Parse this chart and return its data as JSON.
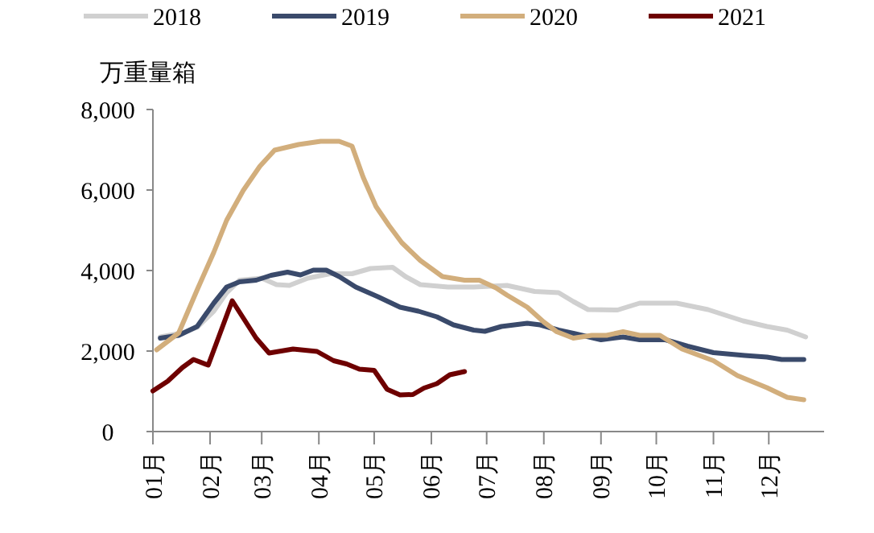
{
  "chart_data": {
    "type": "line",
    "ylabel": "万重量箱",
    "legend": "top",
    "grid": false,
    "marker": "none",
    "line_style": "solid",
    "xlim": [
      "--01-01",
      "--12-31"
    ],
    "xticks": [
      {
        "value": "--01-01",
        "label": "01月"
      },
      {
        "value": "--02-01",
        "label": "02月"
      },
      {
        "value": "--03-01",
        "label": "03月"
      },
      {
        "value": "--04-01",
        "label": "04月"
      },
      {
        "value": "--05-01",
        "label": "05月"
      },
      {
        "value": "--06-01",
        "label": "06月"
      },
      {
        "value": "--07-01",
        "label": "07月"
      },
      {
        "value": "--08-01",
        "label": "08月"
      },
      {
        "value": "--09-01",
        "label": "09月"
      },
      {
        "value": "--10-01",
        "label": "10月"
      },
      {
        "value": "--11-01",
        "label": "11月"
      },
      {
        "value": "--12-01",
        "label": "12月"
      }
    ],
    "ylim": [
      0,
      8000
    ],
    "yticks": [
      {
        "value": 0,
        "label": "0"
      },
      {
        "value": 2000,
        "label": "2,000"
      },
      {
        "value": 4000,
        "label": "4,000"
      },
      {
        "value": 6000,
        "label": "6,000"
      },
      {
        "value": 8000,
        "label": "8,000"
      }
    ],
    "series": [
      {
        "name": "2018",
        "color": "#d0d0d0",
        "x": [
          "--01-05",
          "--01-17",
          "--01-25",
          "--02-03",
          "--02-10",
          "--02-17",
          "--03-01",
          "--03-09",
          "--03-16",
          "--03-26",
          "--04-07",
          "--04-19",
          "--04-29",
          "--05-11",
          "--05-18",
          "--05-26",
          "--06-10",
          "--06-24",
          "--07-12",
          "--07-27",
          "--08-09",
          "--08-17",
          "--08-25",
          "--09-10",
          "--09-22",
          "--10-12",
          "--10-29",
          "--11-17",
          "--11-30",
          "--12-11",
          "--12-21"
        ],
        "values": [
          2350,
          2450,
          2590,
          2990,
          3450,
          3760,
          3810,
          3650,
          3630,
          3810,
          3920,
          3920,
          4050,
          4080,
          3850,
          3650,
          3590,
          3590,
          3630,
          3480,
          3450,
          3230,
          3030,
          3020,
          3190,
          3190,
          3030,
          2750,
          2610,
          2520,
          2350
        ]
      },
      {
        "name": "2019",
        "color": "#3a4a6b",
        "x": [
          "--01-05",
          "--01-15",
          "--01-25",
          "--02-03",
          "--02-10",
          "--02-17",
          "--02-26",
          "--03-06",
          "--03-15",
          "--03-22",
          "--03-29",
          "--04-05",
          "--04-12",
          "--04-21",
          "--05-03",
          "--05-15",
          "--05-25",
          "--06-04",
          "--06-13",
          "--06-24",
          "--06-30",
          "--07-09",
          "--07-23",
          "--07-30",
          "--08-09",
          "--08-18",
          "--09-01",
          "--09-13",
          "--09-22",
          "--10-06",
          "--10-18",
          "--11-01",
          "--11-18",
          "--11-30",
          "--12-08",
          "--12-20"
        ],
        "values": [
          2320,
          2390,
          2610,
          3190,
          3590,
          3720,
          3760,
          3880,
          3960,
          3890,
          4010,
          4010,
          3850,
          3590,
          3350,
          3090,
          2990,
          2850,
          2650,
          2520,
          2490,
          2610,
          2690,
          2650,
          2520,
          2430,
          2280,
          2350,
          2280,
          2280,
          2120,
          1960,
          1890,
          1850,
          1790,
          1790
        ]
      },
      {
        "name": "2020",
        "color": "#d2ae7c",
        "x": [
          "--01-03",
          "--01-15",
          "--01-25",
          "--02-03",
          "--02-10",
          "--02-19",
          "--02-28",
          "--03-08",
          "--03-21",
          "--04-02",
          "--04-12",
          "--04-19",
          "--04-25",
          "--05-02",
          "--05-09",
          "--05-16",
          "--05-26",
          "--06-07",
          "--06-19",
          "--06-27",
          "--07-06",
          "--07-12",
          "--07-23",
          "--08-01",
          "--08-08",
          "--08-17",
          "--08-27",
          "--09-04",
          "--09-13",
          "--09-22",
          "--10-03",
          "--10-15",
          "--11-01",
          "--11-14",
          "--11-30",
          "--12-11",
          "--12-20"
        ],
        "values": [
          2030,
          2450,
          3520,
          4450,
          5250,
          5990,
          6590,
          6990,
          7130,
          7210,
          7210,
          7090,
          6320,
          5590,
          5120,
          4690,
          4250,
          3850,
          3760,
          3760,
          3570,
          3390,
          3090,
          2720,
          2480,
          2320,
          2390,
          2390,
          2480,
          2390,
          2390,
          2050,
          1760,
          1390,
          1090,
          850,
          790
        ]
      },
      {
        "name": "2021",
        "color": "#6e0000",
        "x": [
          "--01-01",
          "--01-09",
          "--01-17",
          "--01-23",
          "--01-31",
          "--02-13",
          "--02-26",
          "--03-05",
          "--03-18",
          "--03-31",
          "--04-09",
          "--04-16",
          "--04-23",
          "--05-01",
          "--05-08",
          "--05-15",
          "--05-22",
          "--05-28",
          "--06-04",
          "--06-11",
          "--06-19"
        ],
        "values": [
          1010,
          1250,
          1590,
          1790,
          1650,
          3250,
          2320,
          1950,
          2050,
          1990,
          1760,
          1680,
          1550,
          1520,
          1050,
          910,
          920,
          1080,
          1190,
          1410,
          1490
        ]
      }
    ]
  }
}
